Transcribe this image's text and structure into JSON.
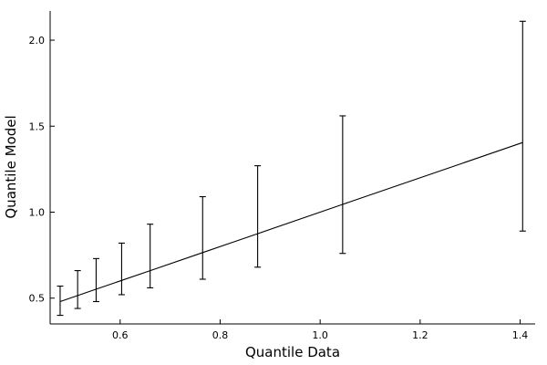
{
  "chart_data": {
    "type": "errorbar-line",
    "title": "",
    "xlabel": "Quantile Data",
    "ylabel": "Quantile Model",
    "xlim": [
      0.46,
      1.43
    ],
    "ylim": [
      0.35,
      2.17
    ],
    "xticks": [
      0.6,
      0.8,
      1.0,
      1.2,
      1.4
    ],
    "xtick_labels": [
      "0.6",
      "0.8",
      "1.0",
      "1.2",
      "1.4"
    ],
    "yticks": [
      0.5,
      1.0,
      1.5,
      2.0
    ],
    "ytick_labels": [
      "0.5",
      "1.0",
      "1.5",
      "2.0"
    ],
    "grid": false,
    "line_color": "#000000",
    "series": [
      {
        "x": [
          0.48,
          0.515,
          0.552,
          0.603,
          0.66,
          0.765,
          0.875,
          1.045,
          1.405
        ],
        "y": [
          0.48,
          0.515,
          0.552,
          0.603,
          0.66,
          0.765,
          0.875,
          1.045,
          1.405
        ],
        "lower": [
          0.4,
          0.44,
          0.48,
          0.52,
          0.56,
          0.61,
          0.68,
          0.76,
          0.89
        ],
        "upper": [
          0.57,
          0.66,
          0.73,
          0.82,
          0.93,
          1.09,
          1.27,
          1.56,
          2.11
        ]
      }
    ]
  }
}
